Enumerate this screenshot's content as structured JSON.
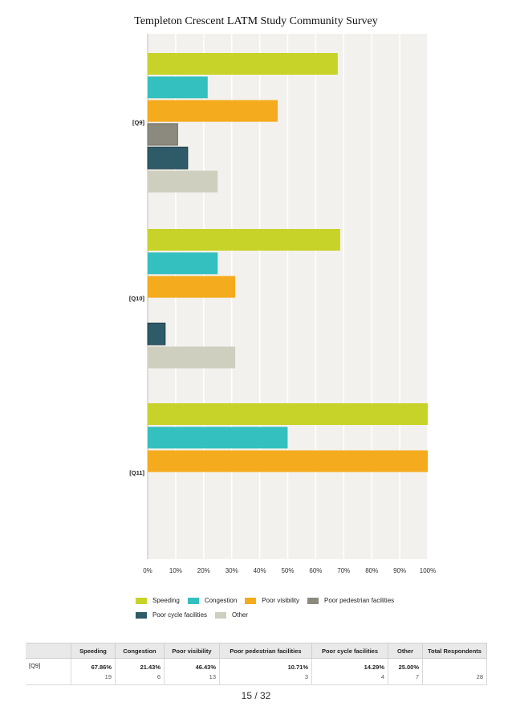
{
  "title": "Templeton Crescent LATM Study Community Survey",
  "colors": {
    "plot_bg": "#f3f1ed",
    "grid": "#ffffff",
    "series": [
      "#c8d32a",
      "#33c0bf",
      "#f5ab1e",
      "#8c8a7e",
      "#2f5a68",
      "#cfcfc0"
    ]
  },
  "chart_data": {
    "type": "bar",
    "orientation": "horizontal",
    "title": "Templeton Crescent LATM Study Community Survey",
    "categories": [
      "[Q9]",
      "[Q10]",
      "[Q11]"
    ],
    "series": [
      {
        "name": "Speeding",
        "values": [
          67.86,
          68.75,
          100
        ]
      },
      {
        "name": "Congestion",
        "values": [
          21.43,
          25,
          50
        ]
      },
      {
        "name": "Poor visibility",
        "values": [
          46.43,
          31.25,
          100
        ]
      },
      {
        "name": "Poor pedestrian facilities",
        "values": [
          10.71,
          0,
          0
        ]
      },
      {
        "name": "Poor cycle facilities",
        "values": [
          14.29,
          6.25,
          0
        ]
      },
      {
        "name": "Other",
        "values": [
          25,
          31.25,
          0
        ]
      }
    ],
    "xlim": [
      0,
      100
    ],
    "x_ticks": [
      "0%",
      "10%",
      "20%",
      "30%",
      "40%",
      "50%",
      "60%",
      "70%",
      "80%",
      "90%",
      "100%"
    ],
    "grid": true,
    "legend_position": "bottom"
  },
  "table": {
    "headers": [
      "",
      "Speeding",
      "Congestion",
      "Poor visibility",
      "Poor pedestrian facilities",
      "Poor cycle facilities",
      "Other",
      "Total Respondents"
    ],
    "rows": [
      {
        "label": "[Q9]",
        "cells": [
          {
            "pct": "67.86%",
            "count": "19"
          },
          {
            "pct": "21.43%",
            "count": "6"
          },
          {
            "pct": "46.43%",
            "count": "13"
          },
          {
            "pct": "10.71%",
            "count": "3"
          },
          {
            "pct": "14.29%",
            "count": "4"
          },
          {
            "pct": "25.00%",
            "count": "7"
          }
        ],
        "total": "28"
      }
    ]
  },
  "pager": "15 / 32"
}
